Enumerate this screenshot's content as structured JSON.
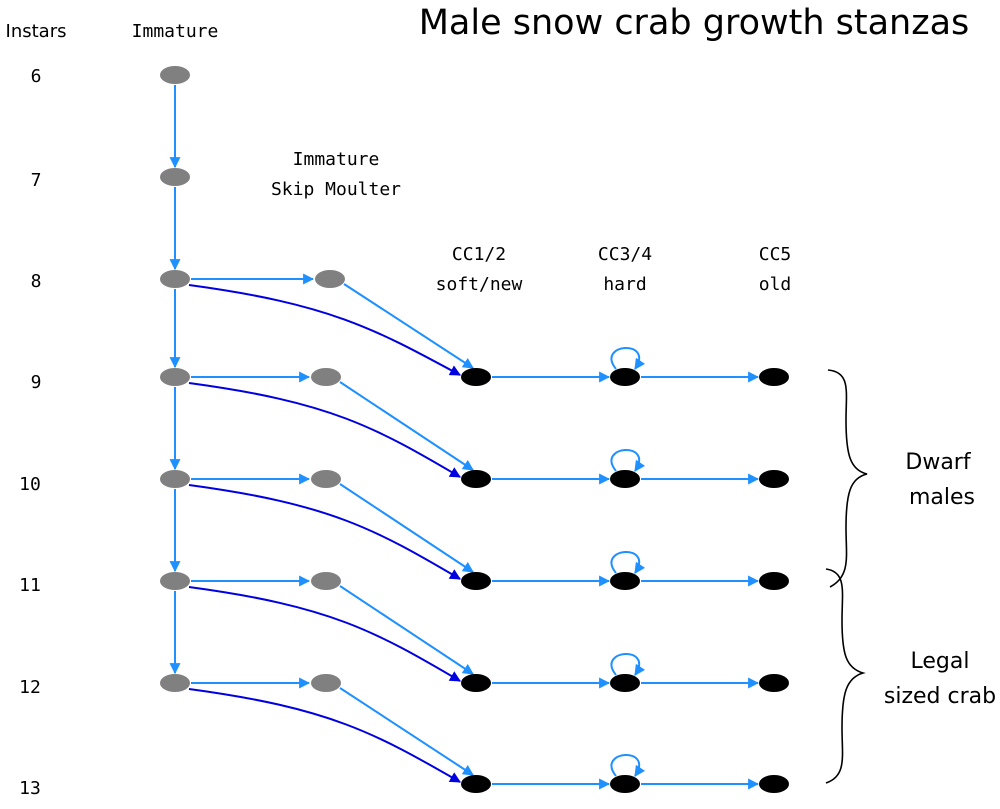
{
  "title": "Male snow crab growth stanzas",
  "headers": {
    "instars": "Instars",
    "immature": "Immature",
    "skip_line1": "Immature",
    "skip_line2": "Skip Moulter",
    "cc12_line1": "CC1/2",
    "cc12_line2": "soft/new",
    "cc34_line1": "CC3/4",
    "cc34_line2": "hard",
    "cc5_line1": "CC5",
    "cc5_line2": "old"
  },
  "instars": [
    "6",
    "7",
    "8",
    "9",
    "10",
    "11",
    "12",
    "13"
  ],
  "groups": {
    "dwarf_line1": "Dwarf",
    "dwarf_line2": "males",
    "legal_line1": "Legal",
    "legal_line2": "sized crab"
  },
  "colors": {
    "immature_node": "#808080",
    "mature_node": "#000000",
    "arrow_light": "#1e90ff",
    "arrow_dark": "#0000e0",
    "text": "#000000"
  }
}
